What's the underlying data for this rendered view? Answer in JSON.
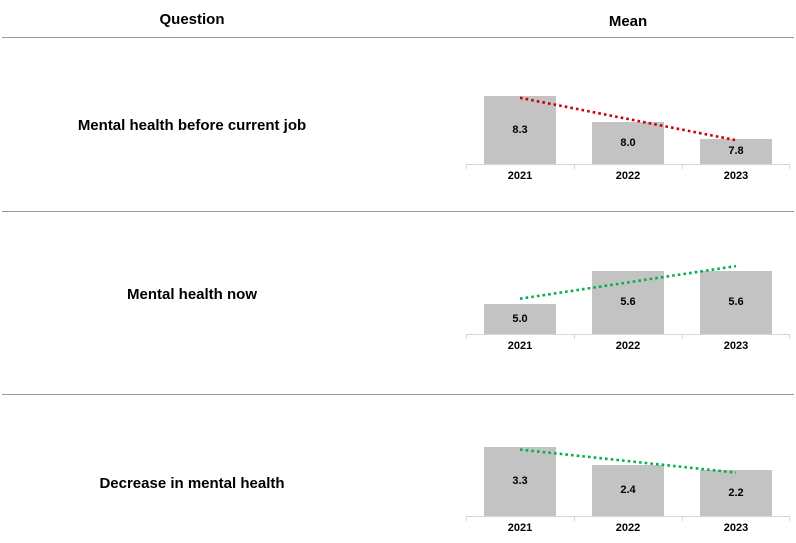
{
  "header": {
    "question_label": "Question",
    "mean_label": "Mean"
  },
  "colors": {
    "bar": "#c3c3c3",
    "axis": "#d6d6d6",
    "divider": "#999999",
    "trend_down_row1": "#cc0000",
    "trend_green": "#00b050"
  },
  "chart_data": [
    {
      "type": "bar",
      "question": "Mental health before current job",
      "categories": [
        "2021",
        "2022",
        "2023"
      ],
      "values": [
        8.3,
        8.0,
        7.8
      ],
      "labels": [
        "8.3",
        "8.0",
        "7.8"
      ],
      "ylim": [
        7.5,
        8.62
      ],
      "grid": false,
      "trendline": {
        "style": "dotted",
        "color": "#cc0000",
        "start_value": 8.28,
        "end_value": 7.78,
        "direction": "down"
      }
    },
    {
      "type": "bar",
      "question": "Mental health now",
      "categories": [
        "2021",
        "2022",
        "2023"
      ],
      "values": [
        5.0,
        5.6,
        5.6
      ],
      "labels": [
        "5.0",
        "5.6",
        "5.6"
      ],
      "ylim": [
        4.45,
        6.2
      ],
      "grid": false,
      "trendline": {
        "style": "dotted",
        "color": "#00b050",
        "start_value": 5.1,
        "end_value": 5.7,
        "direction": "up"
      }
    },
    {
      "type": "bar",
      "question": "Decrease in mental health",
      "categories": [
        "2021",
        "2022",
        "2023"
      ],
      "values": [
        3.3,
        2.4,
        2.2
      ],
      "labels": [
        "3.3",
        "2.4",
        "2.2"
      ],
      "ylim": [
        0,
        4.55
      ],
      "grid": false,
      "trendline": {
        "style": "dotted",
        "color": "#00b050",
        "start_value": 3.18,
        "end_value": 2.08,
        "direction": "down"
      }
    }
  ]
}
